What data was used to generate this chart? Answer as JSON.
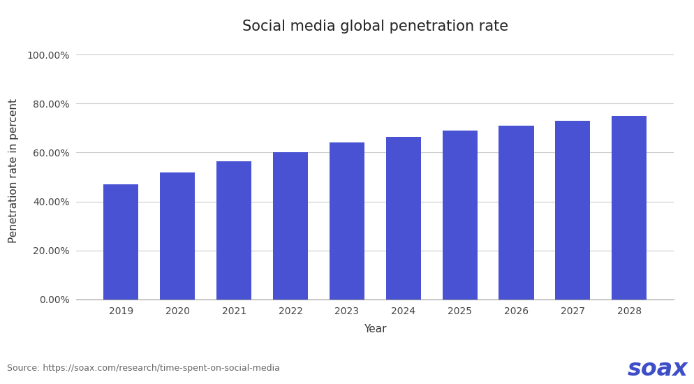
{
  "title": "Social media global penetration rate",
  "years": [
    2019,
    2020,
    2021,
    2022,
    2023,
    2024,
    2025,
    2026,
    2027,
    2028
  ],
  "values": [
    0.47,
    0.52,
    0.565,
    0.6,
    0.64,
    0.665,
    0.69,
    0.71,
    0.73,
    0.75
  ],
  "bar_color": "#4a52d4",
  "xlabel": "Year",
  "ylabel": "Penetration rate in percent",
  "yticks": [
    0.0,
    0.2,
    0.4,
    0.6,
    0.8,
    1.0
  ],
  "ytick_labels": [
    "0.00%",
    "20.00%",
    "40.00%",
    "60.00%",
    "80.00%",
    "100.00%"
  ],
  "ylim": [
    0,
    1.05
  ],
  "source_text": "Source: https://soax.com/research/time-spent-on-social-media",
  "soax_text": "soax",
  "soax_color": "#3d4ec8",
  "background_color": "#ffffff",
  "title_fontsize": 15,
  "axis_label_fontsize": 11,
  "tick_fontsize": 10,
  "source_fontsize": 9,
  "soax_fontsize": 24,
  "bar_width": 0.62
}
